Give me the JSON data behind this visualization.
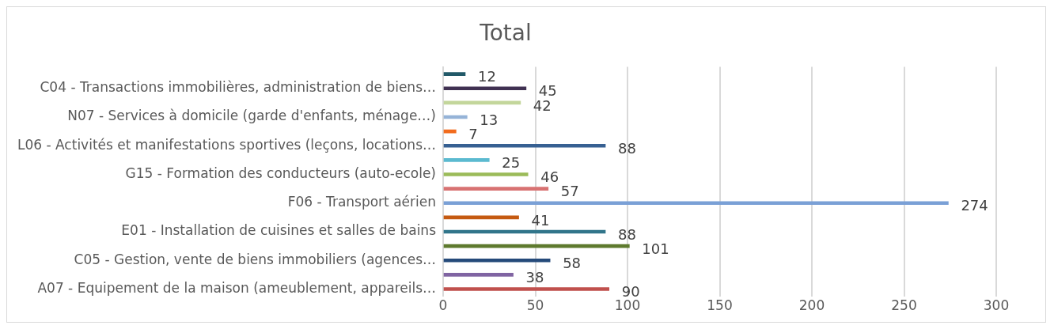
{
  "chart_data": {
    "type": "bar",
    "orientation": "horizontal",
    "title": "Total",
    "categories": [
      null,
      "C04 - Transactions immobilières, administration de biens…",
      null,
      "N07 - Services à domicile (garde d'enfants, ménage…)",
      null,
      "L06 - Activités et manifestations sportives (leçons, locations…",
      null,
      "G15 - Formation des conducteurs (auto-ecole)",
      null,
      "F06 - Transport aérien",
      null,
      "E01 - Installation de cuisines et salles de bains",
      null,
      "C05 - Gestion, vente de biens immobiliers (agences…",
      null,
      "A07 - Equipement de la maison (ameublement, appareils…"
    ],
    "values": [
      12,
      45,
      42,
      13,
      7,
      88,
      25,
      46,
      57,
      274,
      41,
      88,
      101,
      58,
      38,
      90
    ],
    "colors": [
      "#215968",
      "#403152",
      "#c3d69b",
      "#95b3d7",
      "#f26b1d",
      "#376092",
      "#5bbad0",
      "#9bbb59",
      "#d87272",
      "#7aa0d6",
      "#c55a11",
      "#31758a",
      "#5e7a2e",
      "#254a7a",
      "#8064a2",
      "#c0504d"
    ],
    "xlim": [
      0,
      300
    ],
    "xticks": [
      0,
      50,
      100,
      150,
      200,
      250,
      300
    ],
    "grid": "x",
    "data_labels": true
  }
}
